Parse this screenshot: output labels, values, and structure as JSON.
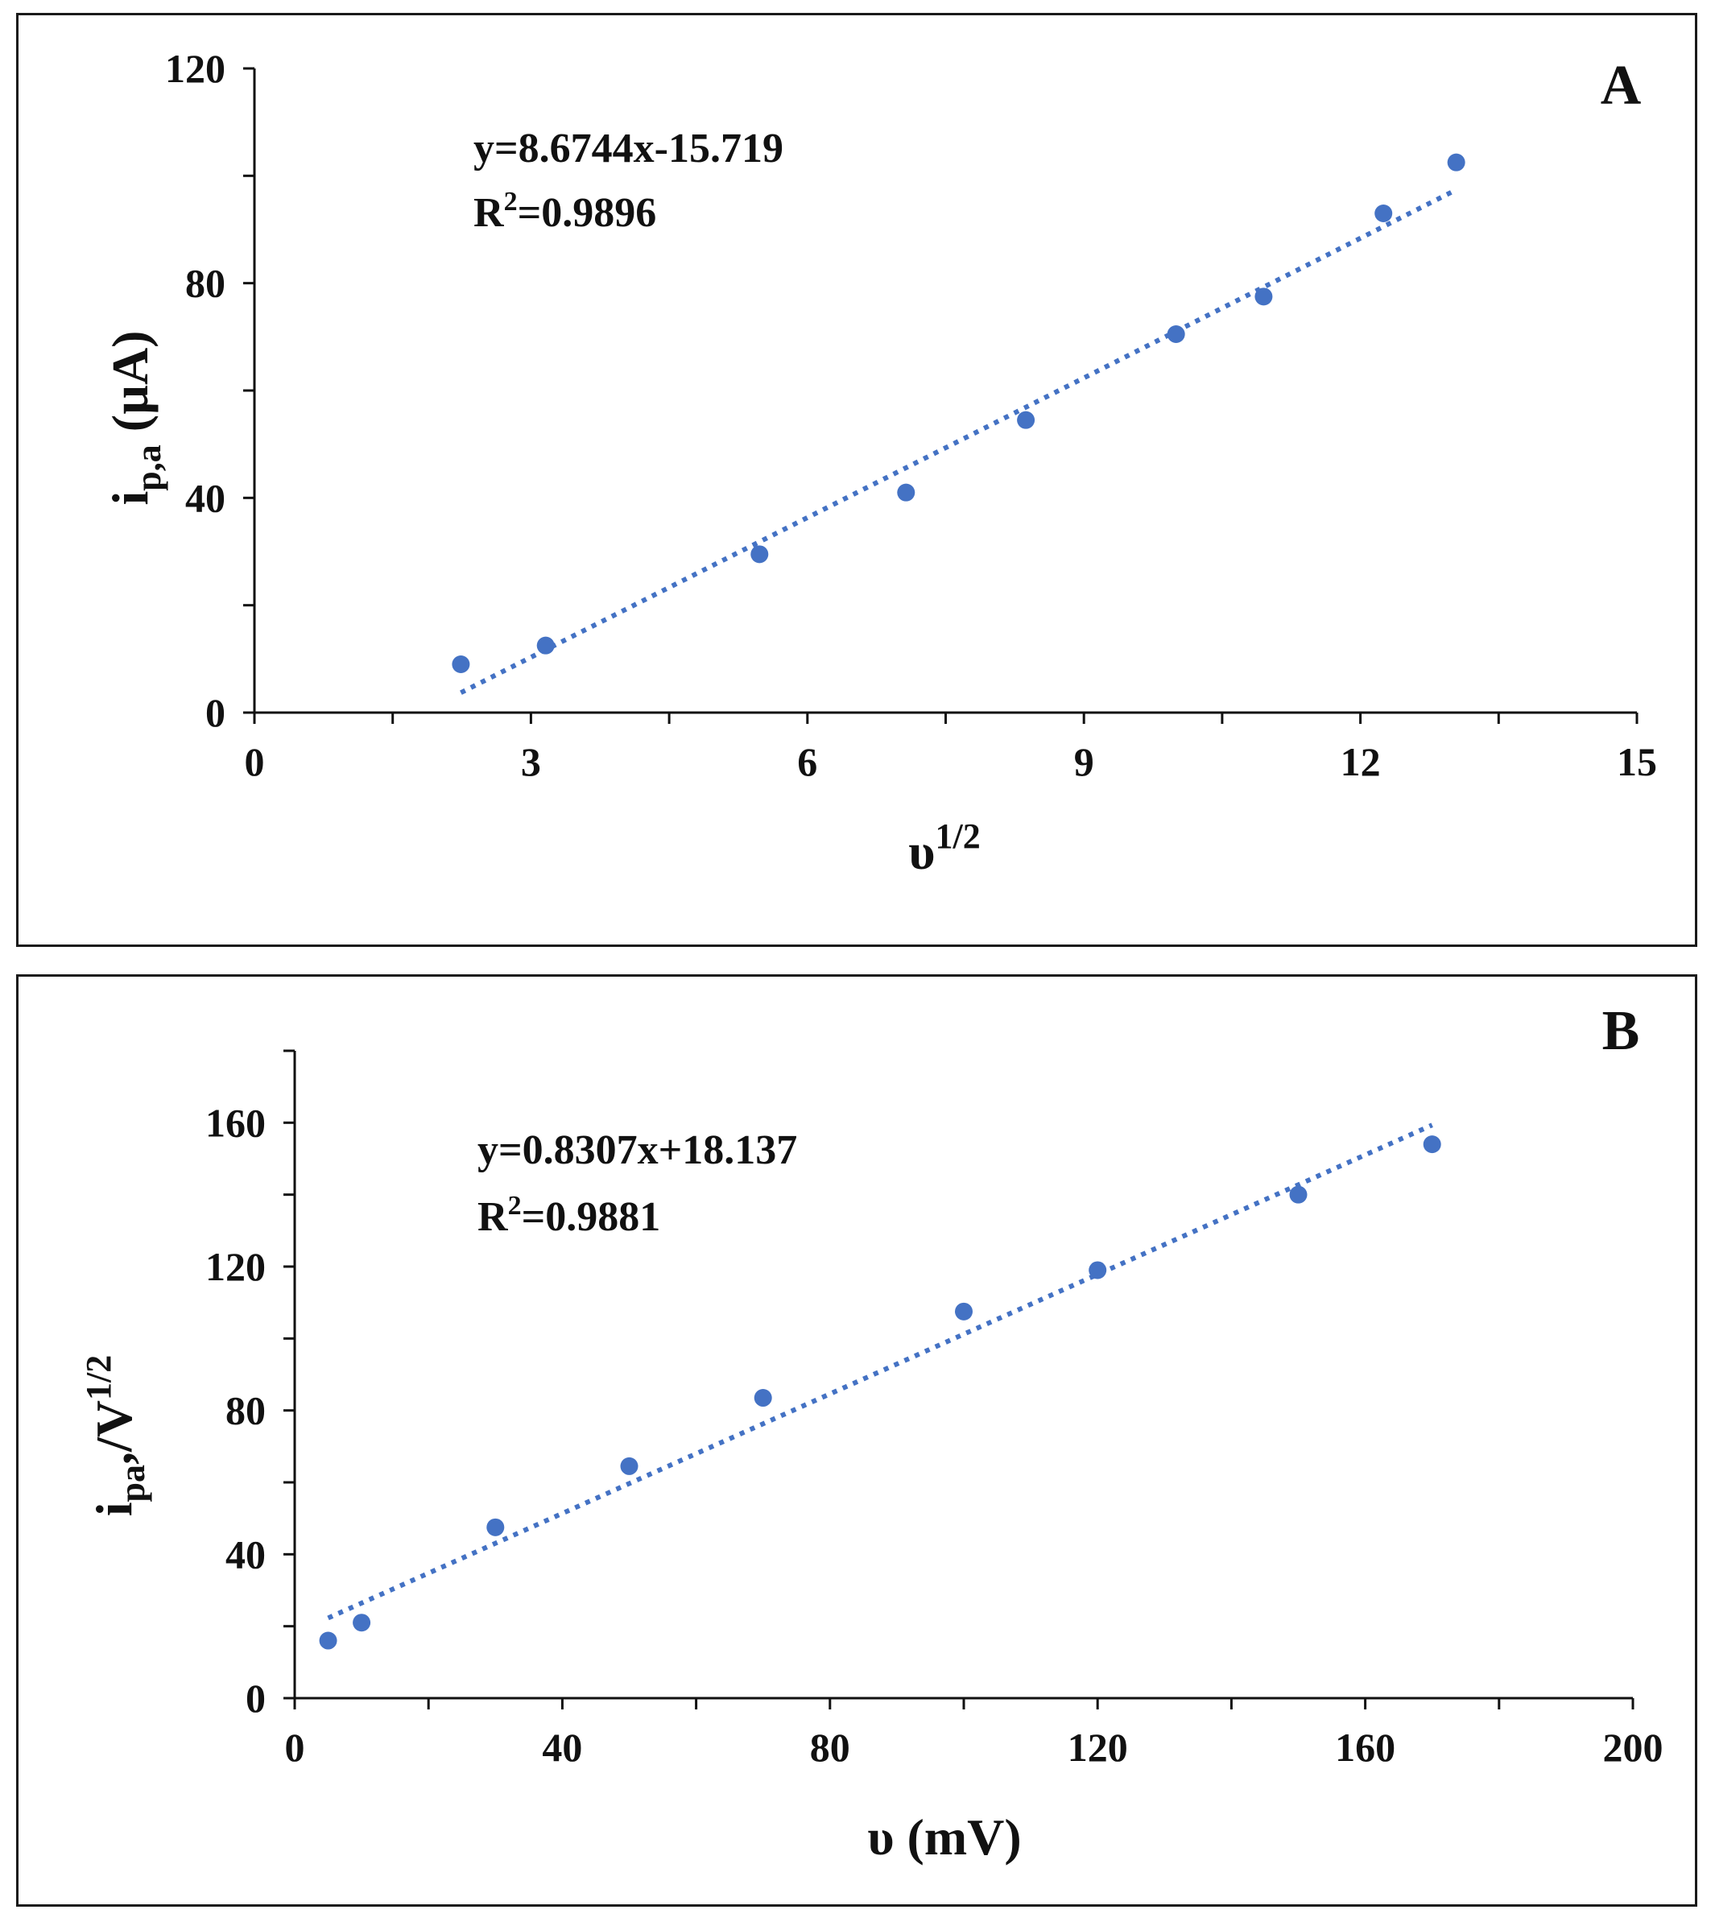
{
  "colors": {
    "marker": "#4472c4",
    "trendline": "#4472c4",
    "axis": "#111111"
  },
  "chart_data": [
    {
      "panel_label": "A",
      "type": "scatter",
      "x": [
        2.24,
        3.16,
        5.48,
        7.07,
        8.37,
        10.0,
        10.95,
        12.25,
        13.04
      ],
      "y": [
        9,
        12.5,
        29.5,
        41,
        54.5,
        70.5,
        77.5,
        93,
        102.5
      ],
      "xlim": [
        0,
        15
      ],
      "ylim": [
        0,
        120
      ],
      "x_ticks": [
        "0",
        "3",
        "6",
        "9",
        "12",
        "15"
      ],
      "y_ticks": [
        "0",
        "40",
        "80",
        "120"
      ],
      "x_minor_step": 1.5,
      "y_minor_step": 20,
      "xlabel_main": "υ",
      "xlabel_sup": "1/2",
      "ylabel_main": "i",
      "ylabel_sub": "p,a",
      "ylabel_tail": " (µA)",
      "equation": "y=8.6744x-15.719",
      "r2_prefix": "R",
      "r2_sup": "2",
      "r2_value": "=0.9896",
      "trendline": {
        "slope": 8.6744,
        "intercept": -15.719,
        "x_range": [
          2.24,
          13.04
        ]
      }
    },
    {
      "panel_label": "B",
      "type": "scatter",
      "x": [
        5,
        10,
        30,
        50,
        70,
        100,
        120,
        150,
        170
      ],
      "y": [
        16,
        21,
        47.5,
        64.5,
        83.5,
        107.5,
        119,
        140,
        154
      ],
      "xlim": [
        0,
        200
      ],
      "ylim": [
        0,
        180
      ],
      "x_ticks": [
        "0",
        "40",
        "80",
        "120",
        "160",
        "200"
      ],
      "y_ticks": [
        "0",
        "40",
        "80",
        "120",
        "160"
      ],
      "x_minor_step": 20,
      "y_minor_step": 20,
      "xlabel_main": "υ (mV)",
      "xlabel_sup": "",
      "ylabel_main": "i",
      "ylabel_sub": "pa",
      "ylabel_tail": ",/V",
      "ylabel_sup": "1/2",
      "equation": "y=0.8307x+18.137",
      "r2_prefix": "R",
      "r2_sup": "2",
      "r2_value": "=0.9881",
      "trendline": {
        "slope": 0.8307,
        "intercept": 18.137,
        "x_range": [
          5,
          170
        ]
      }
    }
  ]
}
